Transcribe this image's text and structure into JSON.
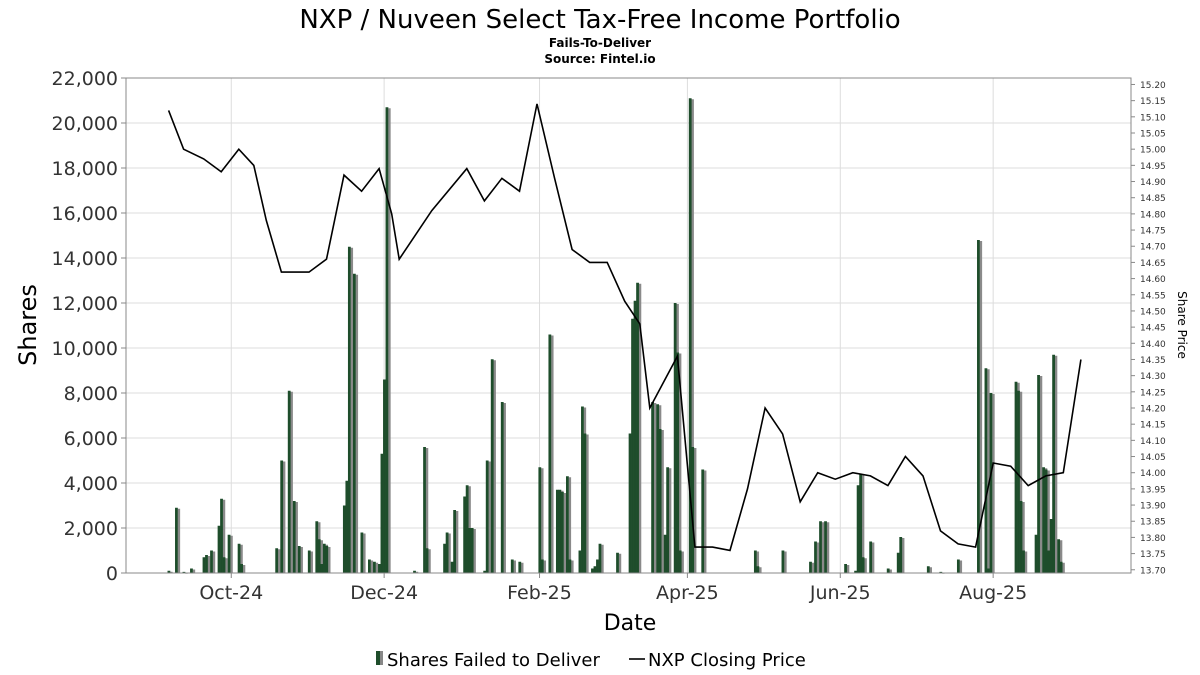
{
  "chart_data": {
    "type": "bar",
    "title": "NXP / Nuveen Select Tax-Free Income Portfolio",
    "subtitle": "Fails-To-Deliver",
    "source": "Source: Fintel.io",
    "xlabel": "Date",
    "ylabel": "Shares",
    "y2label": "Share Price",
    "ylim": [
      0,
      22000
    ],
    "y2lim": [
      13.69,
      15.22
    ],
    "y_ticks": [
      "0",
      "2,000",
      "4,000",
      "6,000",
      "8,000",
      "10,000",
      "12,000",
      "14,000",
      "16,000",
      "18,000",
      "20,000",
      "22,000"
    ],
    "y2_ticks": [
      "13.70",
      "13.75",
      "13.80",
      "13.85",
      "13.90",
      "13.95",
      "14.00",
      "14.05",
      "14.10",
      "14.15",
      "14.20",
      "14.25",
      "14.30",
      "14.35",
      "14.40",
      "14.45",
      "14.50",
      "14.55",
      "14.60",
      "14.65",
      "14.70",
      "14.75",
      "14.80",
      "14.85",
      "14.90",
      "14.95",
      "15.00",
      "15.05",
      "15.10",
      "15.15",
      "15.20"
    ],
    "x_ticks": [
      {
        "label": "Oct-24",
        "date": "2024-10-01"
      },
      {
        "label": "Dec-24",
        "date": "2024-12-01"
      },
      {
        "label": "Feb-25",
        "date": "2025-02-01"
      },
      {
        "label": "Apr-25",
        "date": "2025-04-01"
      },
      {
        "label": "Jun-25",
        "date": "2025-06-01"
      },
      {
        "label": "Aug-25",
        "date": "2025-08-01"
      }
    ],
    "x_range": [
      "2024-08-20",
      "2025-09-25"
    ],
    "grid": true,
    "legend_position": "bottom",
    "legend": [
      "Shares Failed to Deliver",
      "NXP Closing Price"
    ],
    "series": [
      {
        "name": "Shares Failed to Deliver",
        "type": "bar",
        "color": "#1e4d2b",
        "points": [
          {
            "date": "2024-09-06",
            "value": 100
          },
          {
            "date": "2024-09-09",
            "value": 2900
          },
          {
            "date": "2024-09-12",
            "value": 50
          },
          {
            "date": "2024-09-15",
            "value": 200
          },
          {
            "date": "2024-09-20",
            "value": 700
          },
          {
            "date": "2024-09-21",
            "value": 800
          },
          {
            "date": "2024-09-23",
            "value": 1000
          },
          {
            "date": "2024-09-26",
            "value": 2100
          },
          {
            "date": "2024-09-27",
            "value": 3300
          },
          {
            "date": "2024-09-28",
            "value": 700
          },
          {
            "date": "2024-09-30",
            "value": 1700
          },
          {
            "date": "2024-10-04",
            "value": 1300
          },
          {
            "date": "2024-10-05",
            "value": 400
          },
          {
            "date": "2024-10-19",
            "value": 1100
          },
          {
            "date": "2024-10-21",
            "value": 5000
          },
          {
            "date": "2024-10-24",
            "value": 8100
          },
          {
            "date": "2024-10-26",
            "value": 3200
          },
          {
            "date": "2024-10-28",
            "value": 1200
          },
          {
            "date": "2024-11-01",
            "value": 1000
          },
          {
            "date": "2024-11-04",
            "value": 2300
          },
          {
            "date": "2024-11-05",
            "value": 1500
          },
          {
            "date": "2024-11-06",
            "value": 400
          },
          {
            "date": "2024-11-07",
            "value": 1300
          },
          {
            "date": "2024-11-08",
            "value": 1200
          },
          {
            "date": "2024-11-15",
            "value": 3000
          },
          {
            "date": "2024-11-16",
            "value": 4100
          },
          {
            "date": "2024-11-17",
            "value": 14500
          },
          {
            "date": "2024-11-19",
            "value": 13300
          },
          {
            "date": "2024-11-22",
            "value": 1800
          },
          {
            "date": "2024-11-25",
            "value": 600
          },
          {
            "date": "2024-11-27",
            "value": 500
          },
          {
            "date": "2024-11-29",
            "value": 400
          },
          {
            "date": "2024-11-30",
            "value": 5300
          },
          {
            "date": "2024-12-01",
            "value": 8600
          },
          {
            "date": "2024-12-02",
            "value": 20700
          },
          {
            "date": "2024-12-13",
            "value": 100
          },
          {
            "date": "2024-12-17",
            "value": 5600
          },
          {
            "date": "2024-12-18",
            "value": 1100
          },
          {
            "date": "2024-12-25",
            "value": 1300
          },
          {
            "date": "2024-12-26",
            "value": 1800
          },
          {
            "date": "2024-12-28",
            "value": 500
          },
          {
            "date": "2024-12-29",
            "value": 2800
          },
          {
            "date": "2025-01-02",
            "value": 3400
          },
          {
            "date": "2025-01-03",
            "value": 3900
          },
          {
            "date": "2025-01-04",
            "value": 2000
          },
          {
            "date": "2025-01-05",
            "value": 2000
          },
          {
            "date": "2025-01-10",
            "value": 100
          },
          {
            "date": "2025-01-11",
            "value": 5000
          },
          {
            "date": "2025-01-13",
            "value": 9500
          },
          {
            "date": "2025-01-17",
            "value": 7600
          },
          {
            "date": "2025-01-21",
            "value": 600
          },
          {
            "date": "2025-01-24",
            "value": 500
          },
          {
            "date": "2025-02-01",
            "value": 4700
          },
          {
            "date": "2025-02-02",
            "value": 600
          },
          {
            "date": "2025-02-05",
            "value": 10600
          },
          {
            "date": "2025-02-08",
            "value": 3700
          },
          {
            "date": "2025-02-09",
            "value": 3700
          },
          {
            "date": "2025-02-10",
            "value": 3600
          },
          {
            "date": "2025-02-12",
            "value": 4300
          },
          {
            "date": "2025-02-13",
            "value": 600
          },
          {
            "date": "2025-02-17",
            "value": 1000
          },
          {
            "date": "2025-02-18",
            "value": 7400
          },
          {
            "date": "2025-02-19",
            "value": 6200
          },
          {
            "date": "2025-02-22",
            "value": 200
          },
          {
            "date": "2025-02-23",
            "value": 300
          },
          {
            "date": "2025-02-24",
            "value": 600
          },
          {
            "date": "2025-02-25",
            "value": 1300
          },
          {
            "date": "2025-03-04",
            "value": 900
          },
          {
            "date": "2025-03-09",
            "value": 6200
          },
          {
            "date": "2025-03-10",
            "value": 11300
          },
          {
            "date": "2025-03-11",
            "value": 12100
          },
          {
            "date": "2025-03-12",
            "value": 12900
          },
          {
            "date": "2025-03-18",
            "value": 7600
          },
          {
            "date": "2025-03-20",
            "value": 7500
          },
          {
            "date": "2025-03-21",
            "value": 6400
          },
          {
            "date": "2025-03-23",
            "value": 1700
          },
          {
            "date": "2025-03-24",
            "value": 4700
          },
          {
            "date": "2025-03-27",
            "value": 12000
          },
          {
            "date": "2025-03-28",
            "value": 9800
          },
          {
            "date": "2025-03-29",
            "value": 1000
          },
          {
            "date": "2025-04-02",
            "value": 21100
          },
          {
            "date": "2025-04-03",
            "value": 5600
          },
          {
            "date": "2025-04-07",
            "value": 4600
          },
          {
            "date": "2025-04-28",
            "value": 1000
          },
          {
            "date": "2025-04-29",
            "value": 300
          },
          {
            "date": "2025-05-09",
            "value": 1000
          },
          {
            "date": "2025-05-20",
            "value": 500
          },
          {
            "date": "2025-05-22",
            "value": 1400
          },
          {
            "date": "2025-05-24",
            "value": 2300
          },
          {
            "date": "2025-05-26",
            "value": 2300
          },
          {
            "date": "2025-06-03",
            "value": 400
          },
          {
            "date": "2025-06-07",
            "value": 100
          },
          {
            "date": "2025-06-08",
            "value": 3900
          },
          {
            "date": "2025-06-09",
            "value": 4400
          },
          {
            "date": "2025-06-10",
            "value": 700
          },
          {
            "date": "2025-06-13",
            "value": 1400
          },
          {
            "date": "2025-06-20",
            "value": 200
          },
          {
            "date": "2025-06-24",
            "value": 900
          },
          {
            "date": "2025-06-25",
            "value": 1600
          },
          {
            "date": "2025-07-06",
            "value": 300
          },
          {
            "date": "2025-07-11",
            "value": 50
          },
          {
            "date": "2025-07-18",
            "value": 600
          },
          {
            "date": "2025-07-26",
            "value": 14800
          },
          {
            "date": "2025-07-29",
            "value": 9100
          },
          {
            "date": "2025-07-30",
            "value": 200
          },
          {
            "date": "2025-07-31",
            "value": 8000
          },
          {
            "date": "2025-08-10",
            "value": 8500
          },
          {
            "date": "2025-08-11",
            "value": 8100
          },
          {
            "date": "2025-08-12",
            "value": 3200
          },
          {
            "date": "2025-08-13",
            "value": 1000
          },
          {
            "date": "2025-08-18",
            "value": 1700
          },
          {
            "date": "2025-08-19",
            "value": 8800
          },
          {
            "date": "2025-08-21",
            "value": 4700
          },
          {
            "date": "2025-08-22",
            "value": 4600
          },
          {
            "date": "2025-08-23",
            "value": 1000
          },
          {
            "date": "2025-08-24",
            "value": 2400
          },
          {
            "date": "2025-08-25",
            "value": 9700
          },
          {
            "date": "2025-08-27",
            "value": 1500
          },
          {
            "date": "2025-08-28",
            "value": 500
          }
        ]
      },
      {
        "name": "NXP Closing Price",
        "type": "line",
        "color": "#000000",
        "points": [
          {
            "date": "2024-09-06",
            "price": 15.12
          },
          {
            "date": "2024-09-12",
            "price": 15.0
          },
          {
            "date": "2024-09-20",
            "price": 14.97
          },
          {
            "date": "2024-09-27",
            "price": 14.93
          },
          {
            "date": "2024-10-04",
            "price": 15.0
          },
          {
            "date": "2024-10-10",
            "price": 14.95
          },
          {
            "date": "2024-10-15",
            "price": 14.78
          },
          {
            "date": "2024-10-21",
            "price": 14.62
          },
          {
            "date": "2024-10-26",
            "price": 14.62
          },
          {
            "date": "2024-11-01",
            "price": 14.62
          },
          {
            "date": "2024-11-08",
            "price": 14.66
          },
          {
            "date": "2024-11-15",
            "price": 14.92
          },
          {
            "date": "2024-11-22",
            "price": 14.87
          },
          {
            "date": "2024-11-29",
            "price": 14.94
          },
          {
            "date": "2024-12-04",
            "price": 14.8
          },
          {
            "date": "2024-12-07",
            "price": 14.66
          },
          {
            "date": "2024-12-20",
            "price": 14.81
          },
          {
            "date": "2025-01-03",
            "price": 14.94
          },
          {
            "date": "2025-01-10",
            "price": 14.84
          },
          {
            "date": "2025-01-17",
            "price": 14.91
          },
          {
            "date": "2025-01-24",
            "price": 14.87
          },
          {
            "date": "2025-01-31",
            "price": 15.14
          },
          {
            "date": "2025-02-07",
            "price": 14.91
          },
          {
            "date": "2025-02-14",
            "price": 14.69
          },
          {
            "date": "2025-02-21",
            "price": 14.65
          },
          {
            "date": "2025-02-28",
            "price": 14.65
          },
          {
            "date": "2025-03-07",
            "price": 14.53
          },
          {
            "date": "2025-03-13",
            "price": 14.46
          },
          {
            "date": "2025-03-17",
            "price": 14.2
          },
          {
            "date": "2025-03-28",
            "price": 14.36
          },
          {
            "date": "2025-04-04",
            "price": 13.77
          },
          {
            "date": "2025-04-11",
            "price": 13.77
          },
          {
            "date": "2025-04-18",
            "price": 13.76
          },
          {
            "date": "2025-04-25",
            "price": 13.95
          },
          {
            "date": "2025-05-02",
            "price": 14.2
          },
          {
            "date": "2025-05-09",
            "price": 14.12
          },
          {
            "date": "2025-05-16",
            "price": 13.91
          },
          {
            "date": "2025-05-23",
            "price": 14.0
          },
          {
            "date": "2025-05-30",
            "price": 13.98
          },
          {
            "date": "2025-06-06",
            "price": 14.0
          },
          {
            "date": "2025-06-13",
            "price": 13.99
          },
          {
            "date": "2025-06-20",
            "price": 13.96
          },
          {
            "date": "2025-06-27",
            "price": 14.05
          },
          {
            "date": "2025-07-04",
            "price": 13.99
          },
          {
            "date": "2025-07-11",
            "price": 13.82
          },
          {
            "date": "2025-07-18",
            "price": 13.78
          },
          {
            "date": "2025-07-25",
            "price": 13.77
          },
          {
            "date": "2025-08-01",
            "price": 14.03
          },
          {
            "date": "2025-08-08",
            "price": 14.02
          },
          {
            "date": "2025-08-15",
            "price": 13.96
          },
          {
            "date": "2025-08-22",
            "price": 13.99
          },
          {
            "date": "2025-08-29",
            "price": 14.0
          },
          {
            "date": "2025-09-05",
            "price": 14.35
          }
        ]
      }
    ]
  }
}
